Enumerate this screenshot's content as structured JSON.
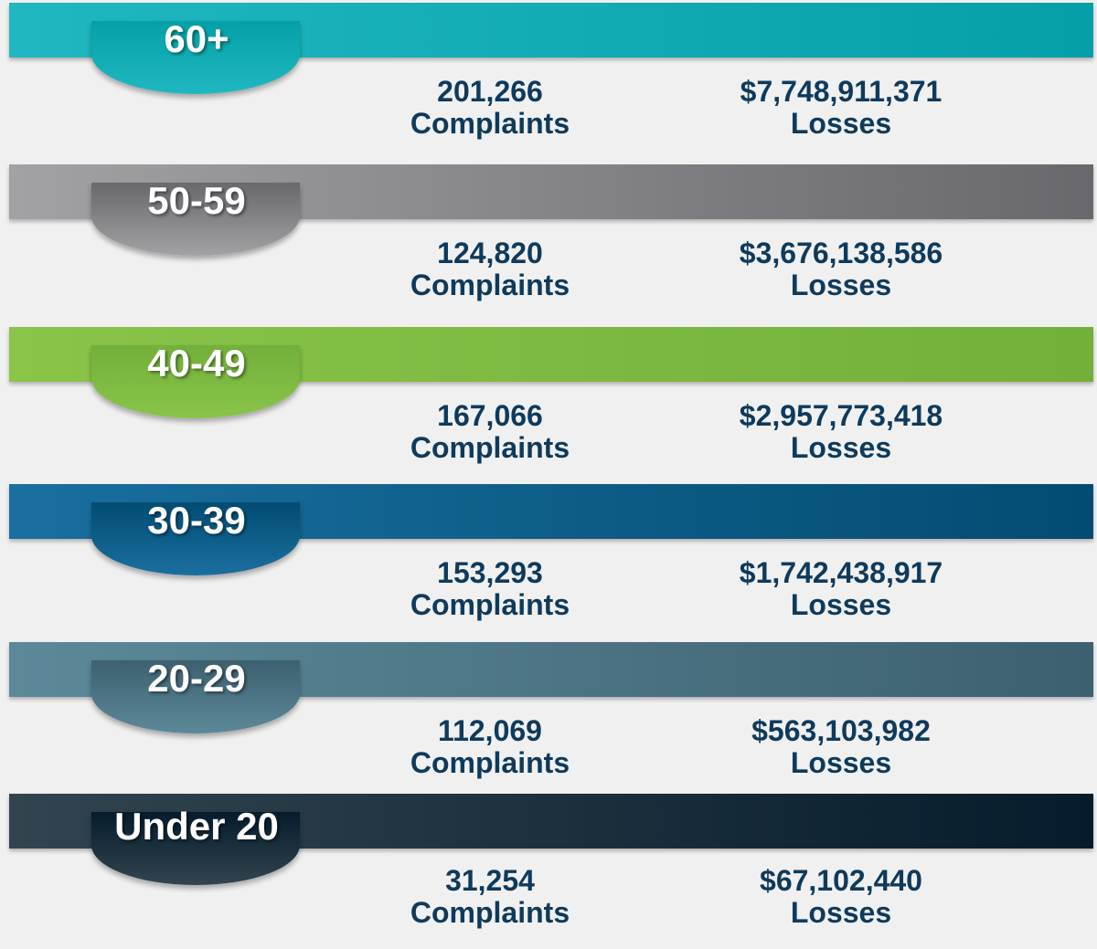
{
  "groups": [
    {
      "age": "60+",
      "complaints": "201,266",
      "complaints_label": "Complaints",
      "losses": "$7,748,911,371",
      "losses_label": "Losses",
      "color_from": "#20b8c0",
      "color_to": "#04a0a8"
    },
    {
      "age": "50-59",
      "complaints": "124,820",
      "complaints_label": "Complaints",
      "losses": "$3,676,138,586",
      "losses_label": "Losses",
      "color_from": "#a2a2a4",
      "color_to": "#68686d"
    },
    {
      "age": "40-49",
      "complaints": "167,066",
      "complaints_label": "Complaints",
      "losses": "$2,957,773,418",
      "losses_label": "Losses",
      "color_from": "#8ac449",
      "color_to": "#72b03a"
    },
    {
      "age": "30-39",
      "complaints": "153,293",
      "complaints_label": "Complaints",
      "losses": "$1,742,438,917",
      "losses_label": "Losses",
      "color_from": "#1a6fa0",
      "color_to": "#024c72"
    },
    {
      "age": "20-29",
      "complaints": "112,069",
      "complaints_label": "Complaints",
      "losses": "$563,103,982",
      "losses_label": "Losses",
      "color_from": "#5c8999",
      "color_to": "#3d6070"
    },
    {
      "age": "Under 20",
      "complaints": "31,254",
      "complaints_label": "Complaints",
      "losses": "$67,102,440",
      "losses_label": "Losses",
      "color_from": "#32444f",
      "color_to": "#061c2c"
    }
  ]
}
